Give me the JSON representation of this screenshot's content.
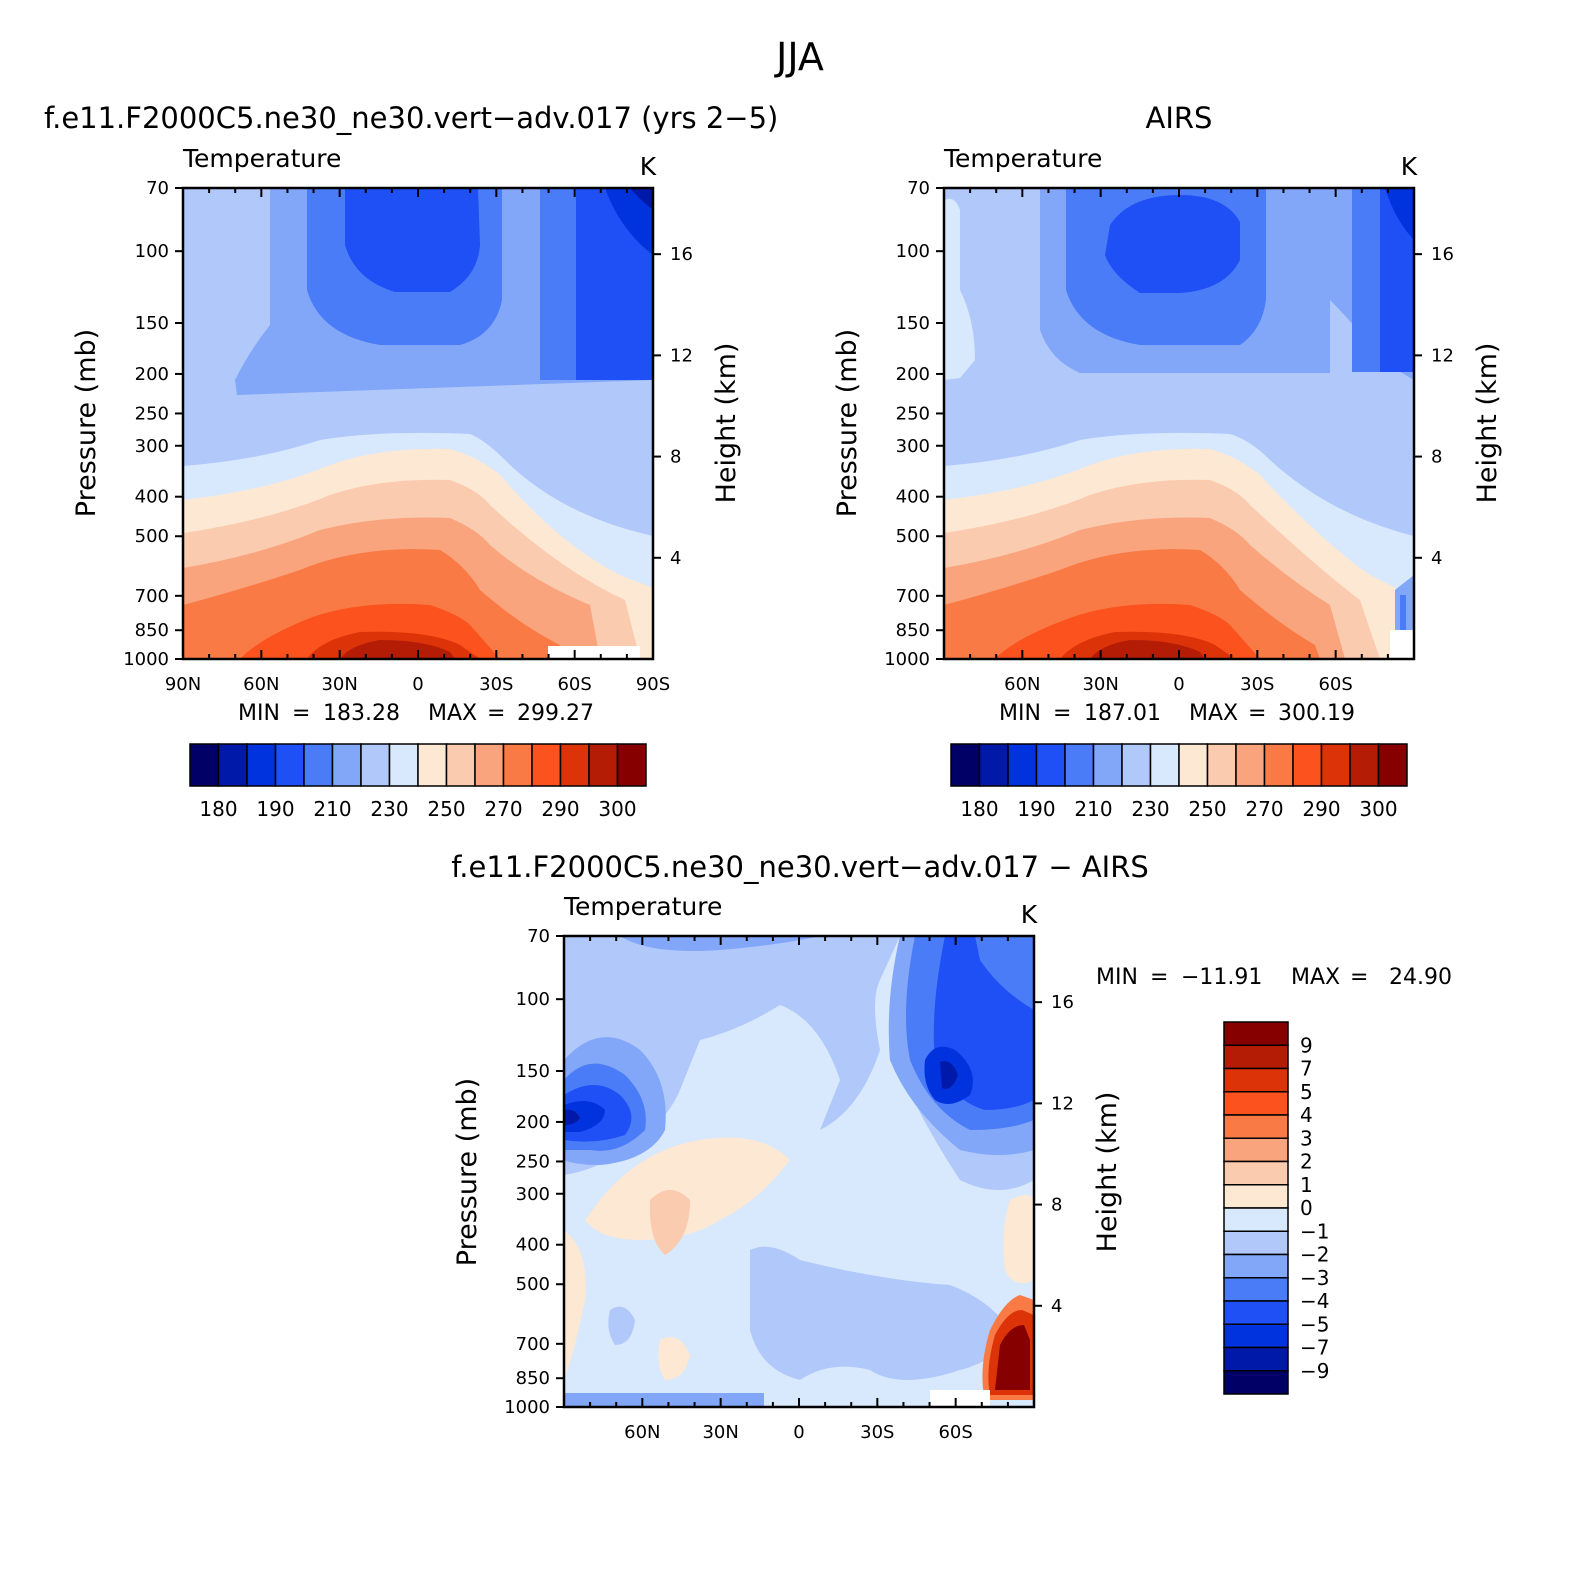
{
  "figure": {
    "title": "JJA"
  },
  "colors": {
    "temperature_levels": [
      "#000066",
      "#0019a8",
      "#0033dd",
      "#1e50f5",
      "#4a7cf8",
      "#82a6f8",
      "#b1c8fb",
      "#d8e8fd",
      "#fde8d4",
      "#fbcbb0",
      "#f9a47c",
      "#f97a44",
      "#fb521e",
      "#dd3308",
      "#b51c06",
      "#870000"
    ],
    "difference_levels": [
      "#000066",
      "#0019a8",
      "#0033dd",
      "#1e50f5",
      "#4a7cf8",
      "#82a6f8",
      "#b1c8fb",
      "#d8e8fd",
      "#fde8d4",
      "#fbcbb0",
      "#f9a47c",
      "#f97a44",
      "#fb521e",
      "#dd3308",
      "#b51c06",
      "#870000"
    ]
  },
  "panels": {
    "model": {
      "title": "f.e11.F2000C5.ne30_ne30.vert−adv.017 (yrs 2−5)",
      "variable": "Temperature",
      "units": "K",
      "ylabel": "Pressure (mb)",
      "ylabel_right": "Height (km)",
      "min_label": "MIN",
      "min_value": "183.28",
      "max_label": "MAX",
      "max_value": "299.27"
    },
    "obs": {
      "title": "AIRS",
      "variable": "Temperature",
      "units": "K",
      "ylabel": "Pressure (mb)",
      "ylabel_right": "Height (km)",
      "min_label": "MIN",
      "min_value": "187.01",
      "max_label": "MAX",
      "max_value": "300.19"
    },
    "diff": {
      "title": "f.e11.F2000C5.ne30_ne30.vert−adv.017 − AIRS",
      "variable": "Temperature",
      "units": "K",
      "ylabel": "Pressure (mb)",
      "ylabel_right": "Height (km)",
      "min_label": "MIN",
      "min_value": "−11.91",
      "max_label": "MAX",
      "max_value": "24.90"
    }
  },
  "chart_data": [
    {
      "type": "heatmap",
      "title": "f.e11.F2000C5.ne30_ne30.vert−adv.017 (yrs 2−5)",
      "xlabel": "",
      "ylabel": "Pressure (mb)",
      "ylabel_right": "Height (km)",
      "x_ticks": [
        "90N",
        "60N",
        "30N",
        "0",
        "30S",
        "60S",
        "90S"
      ],
      "x_tick_values": [
        90,
        60,
        30,
        0,
        -30,
        -60,
        -90
      ],
      "xlim": [
        90,
        -90
      ],
      "y_ticks": [
        70,
        100,
        150,
        200,
        250,
        300,
        400,
        500,
        700,
        850,
        1000
      ],
      "ylim": [
        1000,
        70
      ],
      "y_scale": "log",
      "y_right_ticks": [
        4,
        8,
        12,
        16
      ],
      "contour_levels": [
        180,
        185,
        190,
        200,
        210,
        220,
        230,
        240,
        250,
        260,
        270,
        280,
        290,
        295,
        300
      ],
      "colorbar_labels": [
        "180",
        "190",
        "210",
        "230",
        "250",
        "270",
        "290",
        "300"
      ],
      "min": 183.28,
      "max": 299.27,
      "grid": false
    },
    {
      "type": "heatmap",
      "title": "AIRS",
      "xlabel": "",
      "ylabel": "Pressure (mb)",
      "ylabel_right": "Height (km)",
      "x_ticks": [
        "60N",
        "30N",
        "0",
        "30S",
        "60S"
      ],
      "x_tick_values": [
        60,
        30,
        0,
        -30,
        -60
      ],
      "xlim": [
        90,
        -90
      ],
      "y_ticks": [
        70,
        100,
        150,
        200,
        250,
        300,
        400,
        500,
        700,
        850,
        1000
      ],
      "ylim": [
        1000,
        70
      ],
      "y_scale": "log",
      "y_right_ticks": [
        4,
        8,
        12,
        16
      ],
      "contour_levels": [
        180,
        185,
        190,
        200,
        210,
        220,
        230,
        240,
        250,
        260,
        270,
        280,
        290,
        295,
        300
      ],
      "colorbar_labels": [
        "180",
        "190",
        "210",
        "230",
        "250",
        "270",
        "290",
        "300"
      ],
      "min": 187.01,
      "max": 300.19,
      "grid": false
    },
    {
      "type": "heatmap",
      "title": "f.e11.F2000C5.ne30_ne30.vert−adv.017 − AIRS",
      "xlabel": "",
      "ylabel": "Pressure (mb)",
      "ylabel_right": "Height (km)",
      "x_ticks": [
        "60N",
        "30N",
        "0",
        "30S",
        "60S"
      ],
      "x_tick_values": [
        60,
        30,
        0,
        -30,
        -60
      ],
      "xlim": [
        90,
        -90
      ],
      "y_ticks": [
        70,
        100,
        150,
        200,
        250,
        300,
        400,
        500,
        700,
        850,
        1000
      ],
      "ylim": [
        1000,
        70
      ],
      "y_scale": "log",
      "y_right_ticks": [
        4,
        8,
        12,
        16
      ],
      "contour_levels": [
        -9,
        -7,
        -5,
        -4,
        -3,
        -2,
        -1,
        0,
        1,
        2,
        3,
        4,
        5,
        7,
        9
      ],
      "colorbar_labels": [
        "9",
        "7",
        "5",
        "4",
        "3",
        "2",
        "1",
        "0",
        "−1",
        "−2",
        "−3",
        "−4",
        "−5",
        "−7",
        "−9"
      ],
      "min": -11.91,
      "max": 24.9,
      "grid": false
    }
  ]
}
